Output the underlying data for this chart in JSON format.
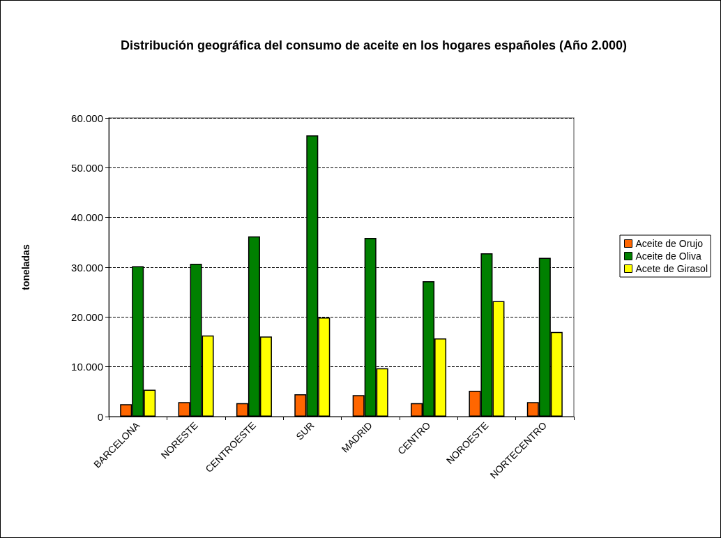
{
  "chart_data": {
    "type": "bar",
    "title": "Distribución geográfica del consumo de aceite en los hogares españoles (Año 2.000)",
    "ylabel": "toneladas",
    "categories": [
      "BARCELONA",
      "NORESTE",
      "CENTROESTE",
      "SUR",
      "MADRID",
      "CENTRO",
      "NOROESTE",
      "NORTECENTRO"
    ],
    "series": [
      {
        "name": "Aceite de Orujo",
        "color": "#ff6600",
        "values": [
          2500,
          2900,
          2700,
          4500,
          4300,
          2700,
          5200,
          2900
        ]
      },
      {
        "name": "Aceite de Oliva",
        "color": "#008000",
        "values": [
          30200,
          30700,
          36200,
          56500,
          35900,
          27200,
          32800,
          31900
        ]
      },
      {
        "name": "Acete de Girasol",
        "color": "#ffff00",
        "values": [
          5400,
          16300,
          16100,
          19900,
          9700,
          15700,
          23200,
          17000
        ]
      }
    ],
    "ylim": [
      0,
      60000
    ],
    "yticks": [
      0,
      {
        "value": 10000,
        "label": "10.000"
      },
      {
        "value": 20000,
        "label": "20.000"
      },
      {
        "value": 30000,
        "label": "30.000"
      },
      {
        "value": 40000,
        "label": "40.000"
      },
      {
        "value": 50000,
        "label": "50.000"
      },
      {
        "value": 60000,
        "label": "60.000"
      }
    ],
    "grid": "y",
    "legend": "right",
    "line_style": "dashed"
  }
}
